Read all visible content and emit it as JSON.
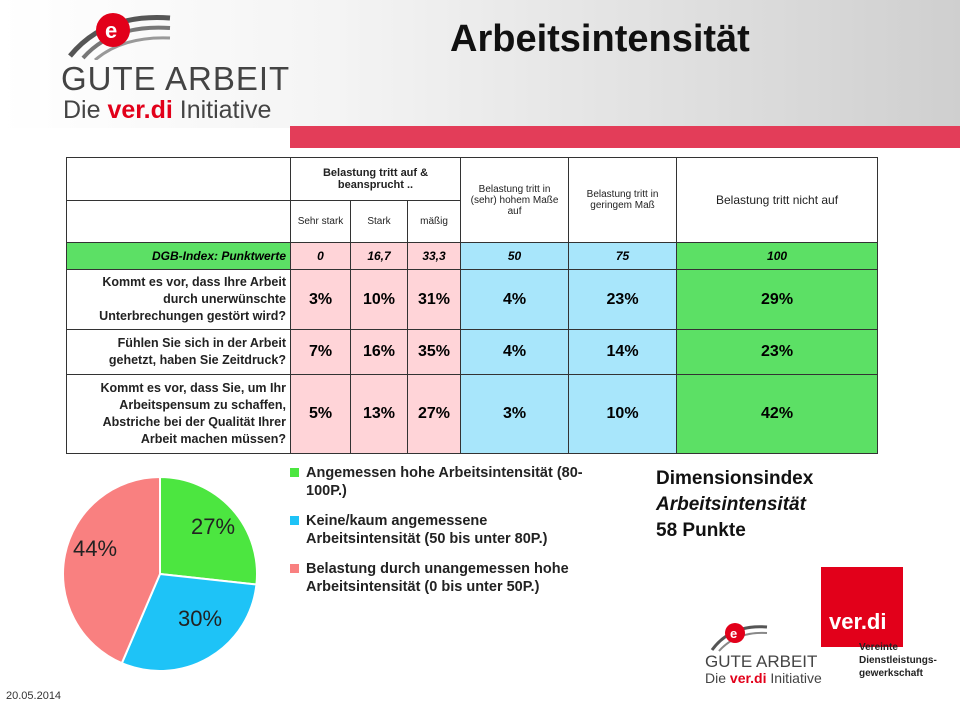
{
  "title": "Arbeitsintensität",
  "logo": {
    "name_text": "GUTE ARBEIT",
    "sub_prefix": "Die ",
    "sub_brand": "ver.di",
    "sub_suffix": " Initiative"
  },
  "table": {
    "group_header": "Belastung tritt auf & beansprucht ..",
    "col_high": "Belastung tritt in (sehr) hohem Maße auf",
    "col_low": "Belastung tritt in geringem Maß",
    "col_none": "Belastung tritt nicht auf",
    "sub_headers": [
      "Sehr stark",
      "Stark",
      "mäßig"
    ],
    "index_label": "DGB-Index: Punktwerte",
    "index_values": [
      "0",
      "16,7",
      "33,3",
      "50",
      "75",
      "100"
    ],
    "rows": [
      {
        "question": "Kommt es vor, dass Ihre Arbeit durch unerwünschte Unterbrechungen gestört wird?",
        "values": [
          "3%",
          "10%",
          "31%",
          "4%",
          "23%",
          "29%"
        ]
      },
      {
        "question": "Fühlen Sie sich in der Arbeit gehetzt, haben Sie Zeitdruck?",
        "values": [
          "7%",
          "16%",
          "35%",
          "4%",
          "14%",
          "23%"
        ]
      },
      {
        "question": "Kommt es vor, dass Sie, um Ihr Arbeitspensum zu schaffen, Abstriche bei der Qualität Ihrer Arbeit machen müssen?",
        "values": [
          "5%",
          "13%",
          "27%",
          "3%",
          "10%",
          "42%"
        ]
      }
    ]
  },
  "pie": {
    "slices": [
      {
        "label": "27%",
        "value": 27,
        "color": "#4ce640"
      },
      {
        "label": "30%",
        "value": 30,
        "color": "#1ec3f7"
      },
      {
        "label": "44%",
        "value": 44,
        "color": "#f98080"
      }
    ]
  },
  "legend": [
    {
      "text": "Angemessen hohe Arbeitsintensität (80-100P.)",
      "color": "#4ce640"
    },
    {
      "text": "Keine/kaum angemessene Arbeitsintensität (50 bis unter 80P.)",
      "color": "#1ec3f7"
    },
    {
      "text": "Belastung durch unangemessen hohe Arbeitsintensität (0 bis unter 50P.)",
      "color": "#f98080"
    }
  ],
  "dimension": {
    "line1": "Dimensionsindex",
    "line2": "Arbeitsintensität",
    "line3": "58 Punkte"
  },
  "date": "20.05.2014",
  "verdi": {
    "logo_text": "ver.di",
    "line1": "Vereinte",
    "line2": "Dienstleistungs-",
    "line3": "gewerkschaft"
  }
}
